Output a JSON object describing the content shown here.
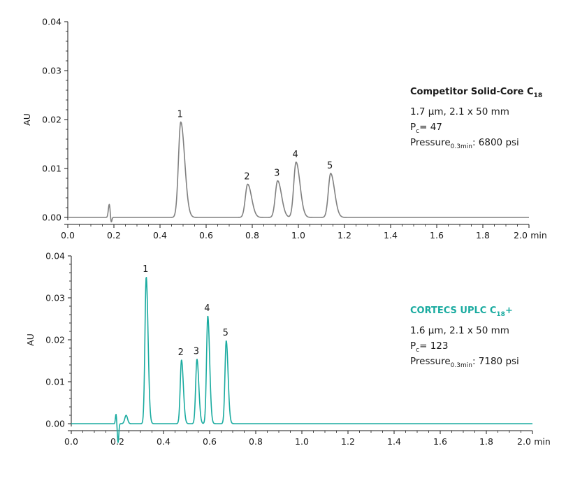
{
  "chart_data": [
    {
      "type": "line",
      "ylabel": "AU",
      "xunit": "min",
      "xlim": [
        0.0,
        2.0
      ],
      "ylim": [
        0.0,
        0.04
      ],
      "xticks": [
        "0.0",
        "0.2",
        "0.4",
        "0.6",
        "0.8",
        "1.0",
        "1.2",
        "1.4",
        "1.6",
        "1.8",
        "2.0"
      ],
      "yticks": [
        "0.00",
        "0.01",
        "0.02",
        "0.03",
        "0.04"
      ],
      "color": "#808080",
      "peaks": [
        {
          "label": "1",
          "time": 0.49,
          "height": 0.0195
        },
        {
          "label": "2",
          "time": 0.78,
          "height": 0.0068
        },
        {
          "label": "3",
          "time": 0.91,
          "height": 0.0075
        },
        {
          "label": "4",
          "time": 0.99,
          "height": 0.0113
        },
        {
          "label": "5",
          "time": 1.14,
          "height": 0.009
        }
      ],
      "baseline_artifacts": [
        {
          "time": 0.18,
          "height": 0.0027
        }
      ],
      "info": {
        "title": "Competitor Solid-Core C",
        "title_sub": "18",
        "title_suffix": "",
        "line1": "1.7 µm, 2.1 x 50 mm",
        "line2_prefix": "P",
        "line2_sub": "c",
        "line2_value": "= 47",
        "line3_prefix": "Pressure",
        "line3_sub": "0.3min",
        "line3_value": ": 6800 psi"
      }
    },
    {
      "type": "line",
      "ylabel": "AU",
      "xunit": "min",
      "xlim": [
        0.0,
        2.0
      ],
      "ylim": [
        0.0,
        0.04
      ],
      "xticks": [
        "0.0",
        "0.2",
        "0.4",
        "0.6",
        "0.8",
        "1.0",
        "1.2",
        "1.4",
        "1.6",
        "1.8",
        "2.0"
      ],
      "yticks": [
        "0.00",
        "0.01",
        "0.02",
        "0.03",
        "0.04"
      ],
      "color": "#1aaba0",
      "peaks": [
        {
          "label": "1",
          "time": 0.325,
          "height": 0.035
        },
        {
          "label": "2",
          "time": 0.478,
          "height": 0.0152
        },
        {
          "label": "3",
          "time": 0.545,
          "height": 0.0154
        },
        {
          "label": "4",
          "time": 0.592,
          "height": 0.0257
        },
        {
          "label": "5",
          "time": 0.672,
          "height": 0.0198
        }
      ],
      "baseline_artifacts": [
        {
          "time": 0.198,
          "height": 0.0023
        },
        {
          "time": 0.238,
          "height": 0.002
        }
      ],
      "info": {
        "title": "CORTECS UPLC C",
        "title_sub": "18",
        "title_suffix": "+",
        "line1": "1.6 µm, 2.1 x 50 mm",
        "line2_prefix": "P",
        "line2_sub": "c",
        "line2_value": "= 123",
        "line3_prefix": "Pressure",
        "line3_sub": "0.3min",
        "line3_value": ": 7180 psi"
      }
    }
  ]
}
